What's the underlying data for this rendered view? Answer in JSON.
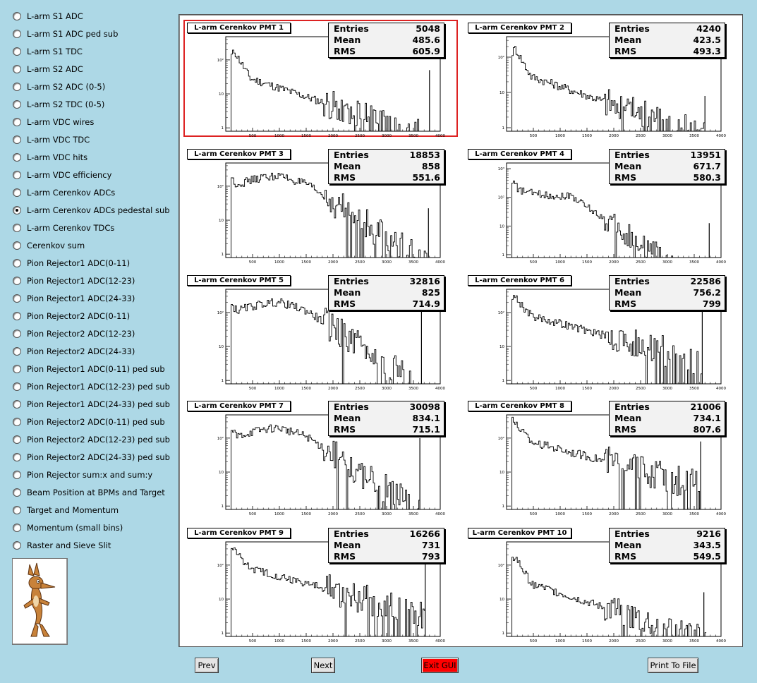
{
  "menu": {
    "items": [
      {
        "label": "L-arm S1 ADC",
        "checked": false
      },
      {
        "label": "L-arm S1 ADC ped sub",
        "checked": false
      },
      {
        "label": "L-arm S1 TDC",
        "checked": false
      },
      {
        "label": "L-arm S2 ADC",
        "checked": false
      },
      {
        "label": "L-arm S2 ADC (0-5)",
        "checked": false
      },
      {
        "label": "L-arm S2 TDC (0-5)",
        "checked": false
      },
      {
        "label": "L-arm VDC wires",
        "checked": false
      },
      {
        "label": "L-arm VDC TDC",
        "checked": false
      },
      {
        "label": "L-arm VDC hits",
        "checked": false
      },
      {
        "label": "L-arm VDC efficiency",
        "checked": false
      },
      {
        "label": "L-arm Cerenkov ADCs",
        "checked": false
      },
      {
        "label": "L-arm Cerenkov ADCs pedestal sub",
        "checked": true
      },
      {
        "label": "L-arm Cerenkov TDCs",
        "checked": false
      },
      {
        "label": "Cerenkov sum",
        "checked": false
      },
      {
        "label": "Pion Rejector1 ADC(0-11)",
        "checked": false
      },
      {
        "label": "Pion Rejector1 ADC(12-23)",
        "checked": false
      },
      {
        "label": "Pion Rejector1 ADC(24-33)",
        "checked": false
      },
      {
        "label": "Pion Rejector2 ADC(0-11)",
        "checked": false
      },
      {
        "label": "Pion Rejector2 ADC(12-23)",
        "checked": false
      },
      {
        "label": "Pion Rejector2 ADC(24-33)",
        "checked": false
      },
      {
        "label": "Pion Rejector1 ADC(0-11) ped sub",
        "checked": false
      },
      {
        "label": "Pion Rejector1 ADC(12-23) ped sub",
        "checked": false
      },
      {
        "label": "Pion Rejector1 ADC(24-33) ped sub",
        "checked": false
      },
      {
        "label": "Pion Rejector2 ADC(0-11) ped sub",
        "checked": false
      },
      {
        "label": "Pion Rejector2 ADC(12-23) ped sub",
        "checked": false
      },
      {
        "label": "Pion Rejector2 ADC(24-33) ped sub",
        "checked": false
      },
      {
        "label": "Pion Rejector sum:x and sum:y",
        "checked": false
      },
      {
        "label": "Beam Position at BPMs and Target",
        "checked": false
      },
      {
        "label": "Target and Momentum",
        "checked": false
      },
      {
        "label": "Momentum (small bins)",
        "checked": false
      },
      {
        "label": "Raster and Sieve Slit",
        "checked": false
      }
    ]
  },
  "mascot": {
    "icon": "coyote-mascot-icon"
  },
  "stats_labels": {
    "entries": "Entries",
    "mean": "Mean",
    "rms": "RMS"
  },
  "axis": {
    "x_ticks": [
      500,
      1000,
      1500,
      2000,
      2500,
      3000,
      3500,
      4000
    ],
    "x_range": [
      0,
      4000
    ],
    "y_scale": "log"
  },
  "plots": [
    {
      "title": "L-arm Cerenkov PMT 1",
      "entries": "5048",
      "mean": "485.6",
      "rms": "605.9",
      "selected": true,
      "y_decades": [
        "1",
        "10",
        "10²"
      ],
      "ymax": 2.7,
      "shape": "steep",
      "spike": 3800,
      "spike_h": 1.8,
      "tail_end": 3800
    },
    {
      "title": "L-arm Cerenkov PMT 2",
      "entries": "4240",
      "mean": "423.5",
      "rms": "493.3",
      "selected": false,
      "y_decades": [
        "1",
        "10",
        "10²"
      ],
      "ymax": 2.6,
      "shape": "steep",
      "spike": 3700,
      "spike_h": 1.0,
      "tail_end": 3700
    },
    {
      "title": "L-arm Cerenkov PMT 3",
      "entries": "18853",
      "mean": "858",
      "rms": "551.6",
      "selected": false,
      "y_decades": [
        "1",
        "10",
        "10²"
      ],
      "ymax": 2.7,
      "shape": "hump",
      "spike": 3780,
      "spike_h": 1.45,
      "tail_end": 3780
    },
    {
      "title": "L-arm Cerenkov PMT 4",
      "entries": "13951",
      "mean": "671.7",
      "rms": "580.3",
      "selected": false,
      "y_decades": [
        "1",
        "10",
        "10²",
        "10³"
      ],
      "ymax": 3.2,
      "shape": "hump-low",
      "spike": 3780,
      "spike_h": 1.2,
      "tail_end": 3800
    },
    {
      "title": "L-arm Cerenkov PMT 5",
      "entries": "32816",
      "mean": "825",
      "rms": "714.9",
      "selected": false,
      "y_decades": [
        "1",
        "10",
        "10²"
      ],
      "ymax": 2.7,
      "shape": "hump",
      "spike": 3650,
      "spike_h": 2.3,
      "tail_end": 3650
    },
    {
      "title": "L-arm Cerenkov PMT 6",
      "entries": "22586",
      "mean": "756.2",
      "rms": "799",
      "selected": false,
      "y_decades": [
        "1",
        "10",
        "10²"
      ],
      "ymax": 2.7,
      "shape": "steep-flat",
      "spike": 3650,
      "spike_h": 2.2,
      "tail_end": 3650
    },
    {
      "title": "L-arm Cerenkov PMT 7",
      "entries": "30098",
      "mean": "834.1",
      "rms": "715.1",
      "selected": false,
      "y_decades": [
        "1",
        "10",
        "10²"
      ],
      "ymax": 2.7,
      "shape": "hump",
      "spike": 3620,
      "spike_h": 2.1,
      "tail_end": 3620
    },
    {
      "title": "L-arm Cerenkov PMT 8",
      "entries": "21006",
      "mean": "734.1",
      "rms": "807.6",
      "selected": false,
      "y_decades": [
        "1",
        "10",
        "10²"
      ],
      "ymax": 2.7,
      "shape": "steep-flat",
      "spike": 3620,
      "spike_h": 2.0,
      "tail_end": 3620
    },
    {
      "title": "L-arm Cerenkov PMT 9",
      "entries": "16266",
      "mean": "731",
      "rms": "793",
      "selected": false,
      "y_decades": [
        "1",
        "10",
        "10²"
      ],
      "ymax": 2.7,
      "shape": "steep-flat",
      "spike": 3720,
      "spike_h": 2.2,
      "tail_end": 3720
    },
    {
      "title": "L-arm Cerenkov PMT 10",
      "entries": "9216",
      "mean": "343.5",
      "rms": "549.5",
      "selected": false,
      "y_decades": [
        "1",
        "10",
        "10²"
      ],
      "ymax": 2.7,
      "shape": "steep",
      "spike": 3680,
      "spike_h": 1.3,
      "tail_end": 3720
    }
  ],
  "buttons": {
    "prev": "Prev",
    "next": "Next",
    "exit": "Exit GUI",
    "print": "Print To File"
  },
  "colors": {
    "background": "#add8e6",
    "exit": "#ff0000",
    "selected_pad": "#dd2222"
  }
}
